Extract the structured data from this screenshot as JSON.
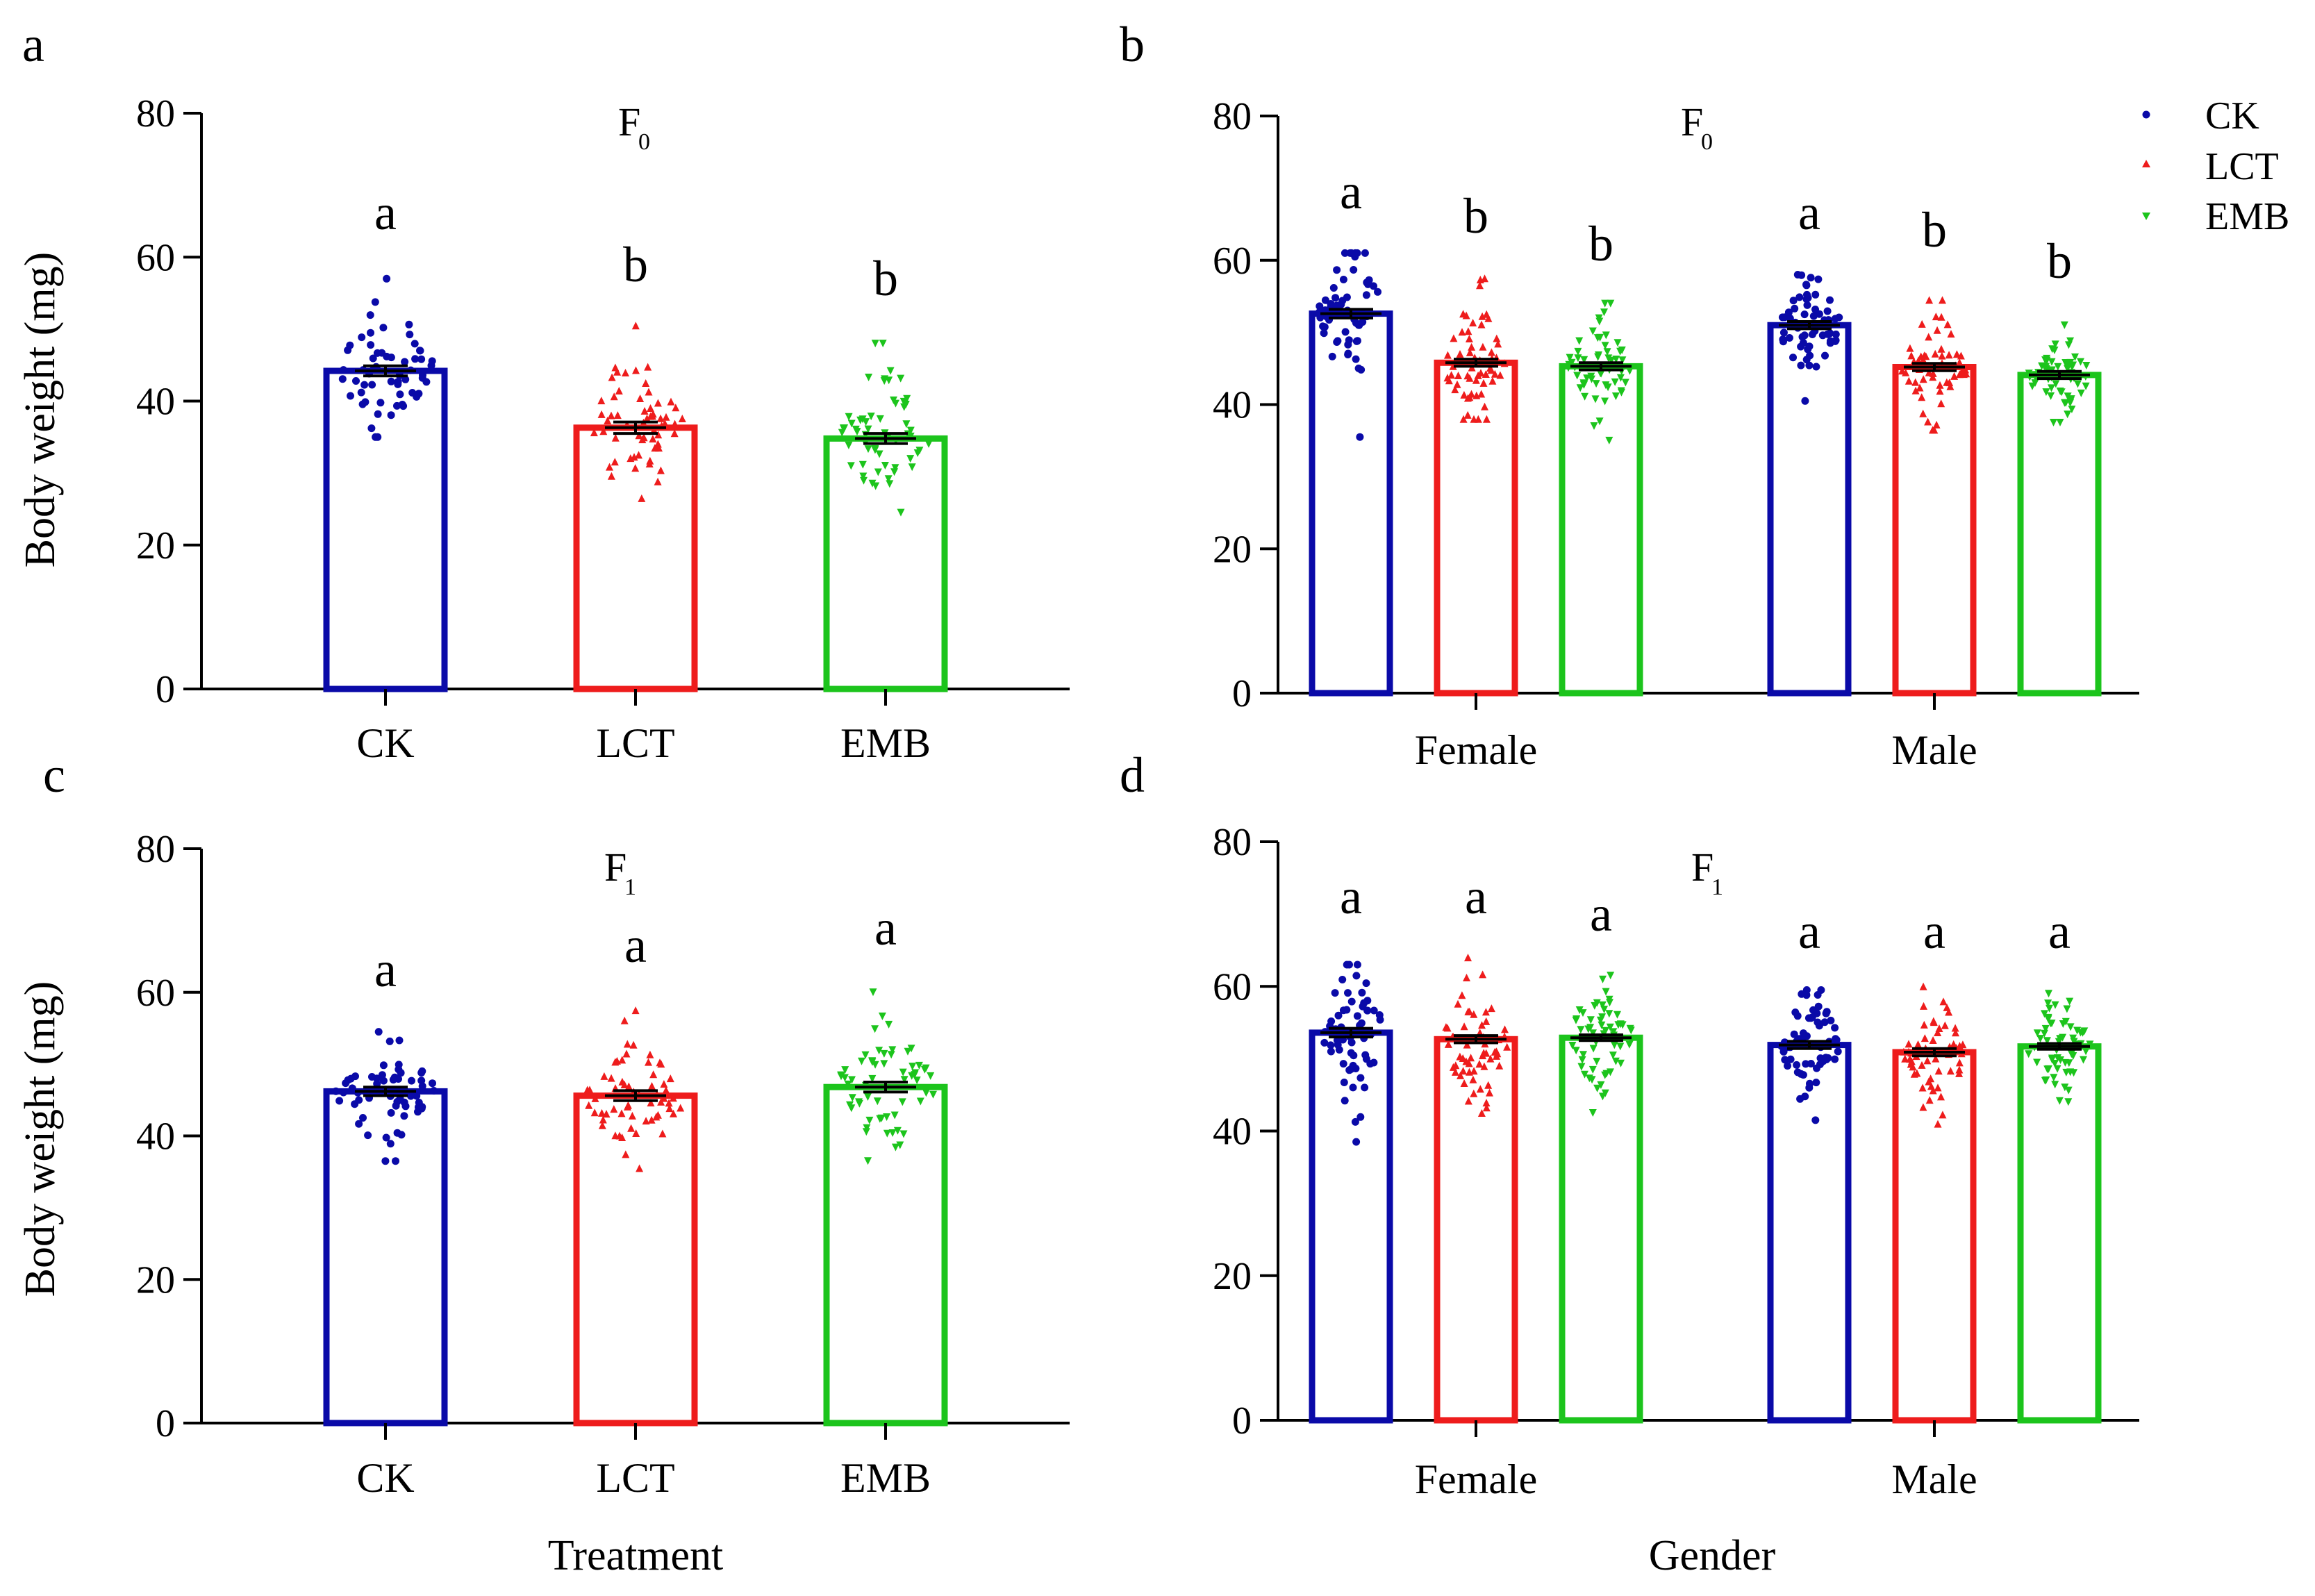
{
  "colors": {
    "CK": "#0a0aa8",
    "LCT": "#ee1c1c",
    "EMB": "#1cc41c",
    "axis": "#000000"
  },
  "axis_titles": {
    "y": "Body weight (mg)",
    "x_left": "Treatment",
    "x_right": "Gender"
  },
  "legend": {
    "entries": [
      {
        "label": "CK",
        "marker": "circle"
      },
      {
        "label": "LCT",
        "marker": "triangle-up"
      },
      {
        "label": "EMB",
        "marker": "triangle-down"
      }
    ]
  },
  "chart_data": [
    {
      "panel": "a",
      "type": "bar",
      "title": "F",
      "title_sub": "0",
      "categories": [
        "CK",
        "LCT",
        "EMB"
      ],
      "values": [
        44.2,
        36.3,
        34.8
      ],
      "sem": [
        0.7,
        0.8,
        0.7
      ],
      "scatter_range": [
        [
          35,
          57
        ],
        [
          26.5,
          50.5
        ],
        [
          24.5,
          48
        ]
      ],
      "significance": [
        "a",
        "b",
        "b"
      ],
      "ylabel": "Body weight (mg)",
      "xlabel": "",
      "ylim": [
        0,
        80
      ],
      "yticks": [
        0,
        20,
        40,
        60,
        80
      ],
      "grid": false
    },
    {
      "panel": "b",
      "type": "bar",
      "title": "F",
      "title_sub": "0",
      "categories": [
        "Female",
        "Male"
      ],
      "series": [
        {
          "name": "CK",
          "values": [
            52.6,
            51.0
          ],
          "sem": [
            0.6,
            0.5
          ],
          "scatter_range": [
            [
              35.5,
              61
            ],
            [
              40.5,
              58
            ]
          ]
        },
        {
          "name": "LCT",
          "values": [
            45.8,
            45.2
          ],
          "sem": [
            0.5,
            0.5
          ],
          "scatter_range": [
            [
              38,
              57.5
            ],
            [
              36.5,
              54.5
            ]
          ]
        },
        {
          "name": "EMB",
          "values": [
            45.3,
            44.1
          ],
          "sem": [
            0.5,
            0.5
          ],
          "scatter_range": [
            [
              35,
              54
            ],
            [
              37.5,
              51
            ]
          ]
        }
      ],
      "significance": [
        [
          "a",
          "b",
          "b"
        ],
        [
          "a",
          "b",
          "b"
        ]
      ],
      "ylabel": "",
      "xlabel": "",
      "ylim": [
        0,
        80
      ],
      "yticks": [
        0,
        20,
        40,
        60,
        80
      ],
      "grid": false,
      "legend": "top-right"
    },
    {
      "panel": "c",
      "type": "bar",
      "title": "F",
      "title_sub": "1",
      "categories": [
        "CK",
        "LCT",
        "EMB"
      ],
      "values": [
        46.2,
        45.6,
        46.8
      ],
      "sem": [
        0.6,
        0.7,
        0.7
      ],
      "scatter_range": [
        [
          36.5,
          54.5
        ],
        [
          35.5,
          57.5
        ],
        [
          36.5,
          60
        ]
      ],
      "significance": [
        "a",
        "a",
        "a"
      ],
      "ylabel": "Body weight (mg)",
      "xlabel": "Treatment",
      "ylim": [
        0,
        80
      ],
      "yticks": [
        0,
        20,
        40,
        60,
        80
      ],
      "grid": false
    },
    {
      "panel": "d",
      "type": "bar",
      "title": "F",
      "title_sub": "1",
      "categories": [
        "Female",
        "Male"
      ],
      "series": [
        {
          "name": "CK",
          "values": [
            53.6,
            51.9
          ],
          "sem": [
            0.6,
            0.5
          ],
          "scatter_range": [
            [
              38.5,
              63
            ],
            [
              41.5,
              59.5
            ]
          ]
        },
        {
          "name": "LCT",
          "values": [
            52.7,
            50.9
          ],
          "sem": [
            0.5,
            0.5
          ],
          "scatter_range": [
            [
              42.5,
              64
            ],
            [
              41,
              60
            ]
          ]
        },
        {
          "name": "EMB",
          "values": [
            52.9,
            51.7
          ],
          "sem": [
            0.4,
            0.4
          ],
          "scatter_range": [
            [
              42.5,
              61.5
            ],
            [
              44,
              59
            ]
          ]
        }
      ],
      "significance": [
        [
          "a",
          "a",
          "a"
        ],
        [
          "a",
          "a",
          "a"
        ]
      ],
      "ylabel": "",
      "xlabel": "Gender",
      "ylim": [
        0,
        80
      ],
      "yticks": [
        0,
        20,
        40,
        60,
        80
      ],
      "grid": false
    }
  ]
}
